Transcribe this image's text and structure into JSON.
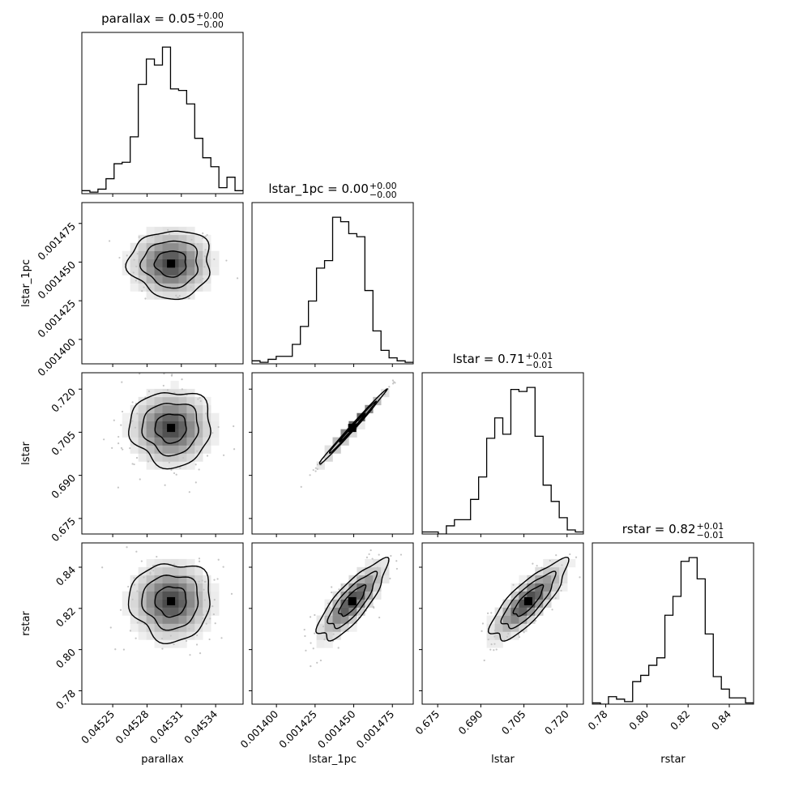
{
  "params": [
    {
      "name": "parallax",
      "label": "parallax",
      "lim": [
        0.045223,
        0.045364
      ],
      "ticks": [
        0.04525,
        0.04528,
        0.04531,
        0.04534
      ],
      "tick_labels": [
        "0.04525",
        "0.04528",
        "0.04531",
        "0.04534"
      ]
    },
    {
      "name": "lstar_1pc",
      "label": "lstar_1pc",
      "lim": [
        0.0013842,
        0.0014885
      ],
      "ticks": [
        0.0014,
        0.001425,
        0.00145,
        0.001475
      ],
      "tick_labels": [
        "0.001400",
        "0.001425",
        "0.001450",
        "0.001475"
      ]
    },
    {
      "name": "lstar",
      "label": "lstar",
      "lim": [
        0.6696,
        0.7257
      ],
      "ticks": [
        0.675,
        0.69,
        0.705,
        0.72
      ],
      "tick_labels": [
        "0.675",
        "0.690",
        "0.705",
        "0.720"
      ]
    },
    {
      "name": "rstar",
      "label": "rstar",
      "lim": [
        0.7735,
        0.8518
      ],
      "ticks": [
        0.78,
        0.8,
        0.82,
        0.84
      ],
      "tick_labels": [
        "0.78",
        "0.80",
        "0.82",
        "0.84"
      ]
    }
  ],
  "titles": [
    {
      "lhs": "parallax = 0.05",
      "sup": "+0.00",
      "sub": "−0.00"
    },
    {
      "lhs": "lstar_1pc = 0.00",
      "sup": "+0.00",
      "sub": "−0.00"
    },
    {
      "lhs": "lstar = 0.71",
      "sup": "+0.01",
      "sub": "−0.01"
    },
    {
      "lhs": "rstar = 0.82",
      "sup": "+0.01",
      "sub": "−0.01"
    }
  ],
  "chart_data": {
    "type": "corner",
    "histograms": [
      {
        "param": "parallax",
        "range": [
          0.045223,
          0.045364
        ],
        "counts": [
          2,
          1,
          3,
          10,
          20,
          21,
          38,
          73,
          90,
          86,
          98,
          70,
          69,
          60,
          37,
          24,
          18,
          4,
          11,
          2
        ]
      },
      {
        "param": "lstar_1pc",
        "range": [
          0.0013842,
          0.0014885
        ],
        "counts": [
          2,
          1,
          3,
          5,
          5,
          13,
          25,
          42,
          64,
          69,
          98,
          95,
          87,
          85,
          49,
          22,
          9,
          4,
          2,
          1
        ]
      },
      {
        "param": "lstar",
        "range": [
          0.6696,
          0.7257
        ],
        "counts": [
          1,
          1,
          0,
          4,
          7,
          7,
          17,
          28,
          47,
          57,
          49,
          71,
          70,
          72,
          48,
          24,
          16,
          8,
          2,
          1
        ]
      },
      {
        "param": "rstar",
        "range": [
          0.7735,
          0.8518
        ],
        "counts": [
          1,
          0,
          6,
          4,
          2,
          18,
          23,
          31,
          37,
          71,
          86,
          114,
          117,
          100,
          56,
          22,
          12,
          5,
          5,
          1
        ]
      }
    ],
    "joint": [
      {
        "x": "parallax",
        "y": "lstar_1pc",
        "center": [
          0.045301,
          0.001449
        ],
        "spread": [
          1.82e-05,
          1.12e-05
        ],
        "rho": 0.0
      },
      {
        "x": "parallax",
        "y": "lstar",
        "center": [
          0.045301,
          0.7065
        ],
        "spread": [
          1.82e-05,
          0.0067
        ],
        "rho": 0.0
      },
      {
        "x": "parallax",
        "y": "rstar",
        "center": [
          0.045301,
          0.8235
        ],
        "spread": [
          1.82e-05,
          0.0097
        ],
        "rho": 0.0
      },
      {
        "x": "lstar_1pc",
        "y": "lstar",
        "center": [
          0.001449,
          0.7065
        ],
        "spread": [
          1.12e-05,
          0.0067
        ],
        "rho": 0.995
      },
      {
        "x": "lstar_1pc",
        "y": "rstar",
        "center": [
          0.001449,
          0.8235
        ],
        "spread": [
          1.12e-05,
          0.0097
        ],
        "rho": 0.8
      },
      {
        "x": "lstar",
        "y": "rstar",
        "center": [
          0.7065,
          0.8235
        ],
        "spread": [
          0.0067,
          0.0097
        ],
        "rho": 0.8
      }
    ]
  }
}
